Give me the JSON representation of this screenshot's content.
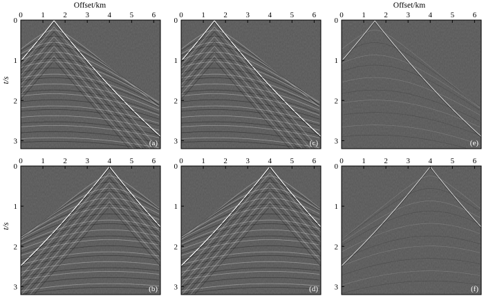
{
  "figure": {
    "top_axis_title": "Offset/km",
    "y_axis_title": "t/s",
    "x_ticks": [
      "0",
      "1",
      "2",
      "3",
      "4",
      "5",
      "6"
    ],
    "y_ticks": [
      "0",
      "1",
      "2",
      "3"
    ],
    "x_range_km": [
      0,
      6.3
    ],
    "t_range_s": [
      0,
      3.2
    ],
    "background_color": "#555555",
    "event_color": "#ffffff"
  },
  "panels": [
    {
      "label": "(a)",
      "source_offset_km": 1.5,
      "strength": "strong"
    },
    {
      "label": "(c)",
      "source_offset_km": 1.5,
      "strength": "strong"
    },
    {
      "label": "(e)",
      "source_offset_km": 1.5,
      "strength": "weak"
    },
    {
      "label": "(b)",
      "source_offset_km": 4.0,
      "strength": "strong"
    },
    {
      "label": "(d)",
      "source_offset_km": 4.0,
      "strength": "strong"
    },
    {
      "label": "(f)",
      "source_offset_km": 4.0,
      "strength": "weak"
    }
  ]
}
